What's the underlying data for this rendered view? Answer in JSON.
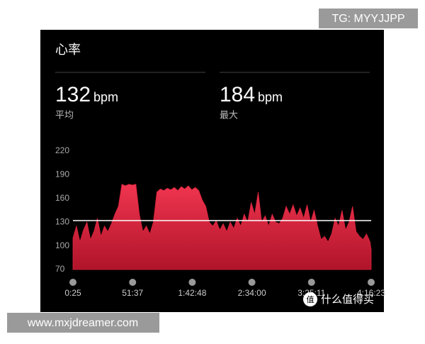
{
  "header": {
    "title": "心率"
  },
  "stats": [
    {
      "value": 132,
      "unit": "bpm",
      "label": "平均"
    },
    {
      "value": 184,
      "unit": "bpm",
      "label": "最大"
    }
  ],
  "chart_data": {
    "type": "area",
    "color": "#d8213c",
    "x": [
      25,
      205,
      385,
      565,
      745,
      925,
      1105,
      1285,
      1465,
      1645,
      1825,
      2005,
      2185,
      2365,
      2545,
      2725,
      2905,
      3085,
      3265,
      3445,
      3625,
      3805,
      3985,
      4165,
      4345,
      4525,
      4705,
      4885,
      5065,
      5245,
      5425,
      5605,
      5785,
      5965,
      6145,
      6325,
      6505,
      6685,
      6865,
      7045,
      7225,
      7405,
      7585,
      7765,
      7945,
      8125,
      8305,
      8485,
      8665,
      8845,
      9025,
      9205,
      9385,
      9565,
      9745,
      9925,
      10105,
      10285,
      10465,
      10645,
      10825,
      11005,
      11185,
      11365,
      11545,
      11725,
      11905,
      12085,
      12265,
      12445,
      12625,
      12805,
      12985,
      13165,
      13345,
      13525,
      13705,
      13885,
      14065,
      14245,
      14425,
      14605,
      14785,
      14965,
      15145,
      15325,
      15383
    ],
    "values": [
      110,
      125,
      105,
      120,
      130,
      108,
      118,
      135,
      112,
      125,
      118,
      128,
      140,
      150,
      178,
      176,
      178,
      177,
      178,
      140,
      118,
      125,
      115,
      130,
      168,
      172,
      170,
      173,
      171,
      174,
      170,
      175,
      172,
      176,
      171,
      174,
      170,
      158,
      150,
      130,
      125,
      132,
      120,
      128,
      118,
      130,
      122,
      135,
      125,
      140,
      130,
      155,
      140,
      168,
      130,
      138,
      125,
      140,
      130,
      128,
      135,
      150,
      140,
      152,
      138,
      148,
      135,
      152,
      130,
      145,
      125,
      108,
      112,
      105,
      115,
      135,
      125,
      145,
      120,
      130,
      150,
      118,
      112,
      108,
      115,
      105,
      95
    ],
    "xlim": [
      25,
      15383
    ],
    "xticks": [
      {
        "value": 25,
        "label": "0:25"
      },
      {
        "value": 3097,
        "label": "51:37"
      },
      {
        "value": 6168,
        "label": "1:42:48"
      },
      {
        "value": 9240,
        "label": "2:34:00"
      },
      {
        "value": 12311,
        "label": "3:25:11"
      },
      {
        "value": 15383,
        "label": "4:16:23"
      }
    ],
    "ylim": [
      70,
      220
    ],
    "yticks": [
      220,
      190,
      160,
      130,
      100,
      70
    ]
  },
  "watermarks": {
    "top": "TG: MYYJJPP",
    "bottom_left": "www.mxjdreamer.com",
    "bottom_right": "什么值得买"
  }
}
